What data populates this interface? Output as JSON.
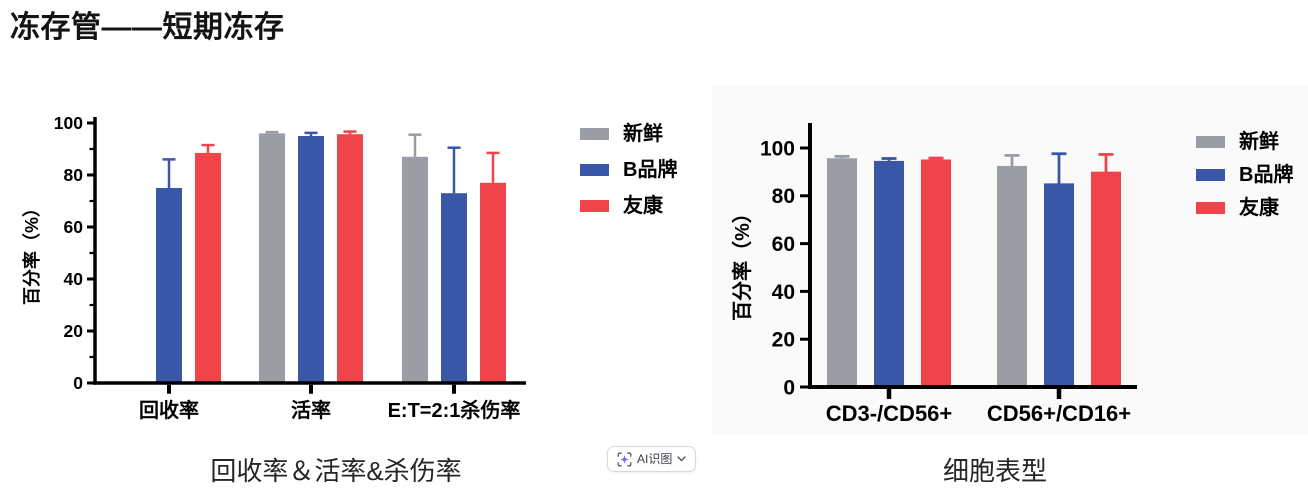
{
  "page": {
    "title": "冻存管——短期冻存",
    "background": "#ffffff",
    "panel_background": "#fafafa"
  },
  "legend": {
    "position": "right",
    "items": [
      {
        "label": "新鲜",
        "color": "#9A9DA4"
      },
      {
        "label": "B品牌",
        "color": "#3A56A7"
      },
      {
        "label": "友康",
        "color": "#EF4449"
      }
    ]
  },
  "ai_button": {
    "label": "AI识图",
    "icon": "ai-scan-sparkle-icon",
    "accent_color": "#7C5CFC"
  },
  "chart_data": [
    {
      "type": "bar",
      "caption": "回收率＆活率&杀伤率",
      "ylabel": "百分率（%）",
      "ylim": [
        0,
        100
      ],
      "yticks": [
        0,
        20,
        40,
        60,
        80,
        100
      ],
      "yticks_minor": [
        10,
        30,
        50,
        70,
        90
      ],
      "grid": false,
      "categories": [
        "回收率",
        "活率",
        "E:T=2:1杀伤率"
      ],
      "series": [
        {
          "name": "新鲜",
          "color": "#9A9DA4",
          "values": [
            null,
            96,
            87
          ],
          "err_up": [
            null,
            0.5,
            8.5
          ],
          "err_down": [
            null,
            0,
            0
          ]
        },
        {
          "name": "B品牌",
          "color": "#3A56A7",
          "values": [
            75,
            95,
            73
          ],
          "err_up": [
            11,
            1.2,
            17.5
          ],
          "err_down": [
            0,
            0,
            0
          ]
        },
        {
          "name": "友康",
          "color": "#EF4449",
          "values": [
            88.5,
            95.7,
            77
          ],
          "err_up": [
            3,
            1,
            11.5
          ],
          "err_down": [
            0,
            0,
            0
          ]
        }
      ]
    },
    {
      "type": "bar",
      "caption": "细胞表型",
      "ylabel": "百分率（%）",
      "ylim": [
        0,
        110
      ],
      "yticks": [
        0,
        20,
        40,
        60,
        80,
        100
      ],
      "yticks_minor": [],
      "grid": false,
      "categories": [
        "CD3-/CD56+",
        "CD56+/CD16+"
      ],
      "series": [
        {
          "name": "新鲜",
          "color": "#9A9DA4",
          "values": [
            95.7,
            92.5
          ],
          "err_up": [
            0.8,
            4.4
          ],
          "err_down": [
            0,
            0
          ]
        },
        {
          "name": "B品牌",
          "color": "#3A56A7",
          "values": [
            94.6,
            85.2
          ],
          "err_up": [
            1,
            12.4
          ],
          "err_down": [
            0,
            11.2
          ]
        },
        {
          "name": "友康",
          "color": "#EF4449",
          "values": [
            95.2,
            90.1
          ],
          "err_up": [
            0.6,
            7.2
          ],
          "err_down": [
            0,
            6.3
          ]
        }
      ]
    }
  ]
}
